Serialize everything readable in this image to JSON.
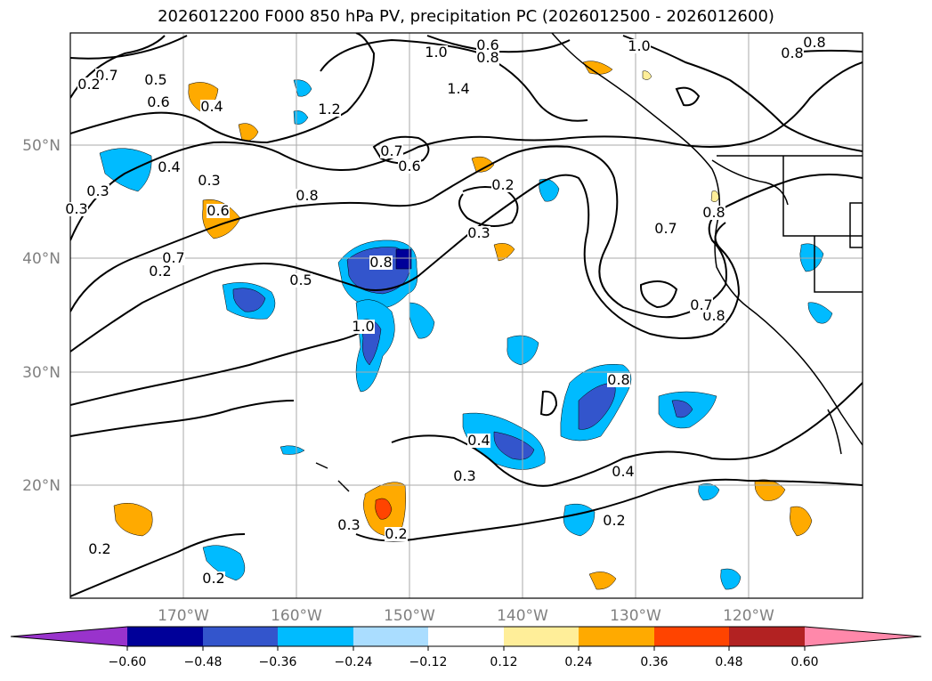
{
  "title": "2026012200 F000 850 hPa PV, precipitation PC (2026012500 - 2026012600)",
  "colors": {
    "neg": [
      "#9933cc",
      "#000099",
      "#3355cc",
      "#00bbff",
      "#aaddff"
    ],
    "zero": "#ffffff",
    "pos": [
      "#ffee99",
      "#ffaa00",
      "#ff4400",
      "#b22222",
      "#ff88aa"
    ],
    "grid": "#aaaaaa",
    "coast": "#000000",
    "contour": "#000000"
  },
  "lat_labels": [
    "50°N",
    "40°N",
    "30°N",
    "20°N"
  ],
  "lon_labels": [
    "170°W",
    "160°W",
    "150°W",
    "140°W",
    "130°W",
    "120°W"
  ],
  "colorbar": {
    "ticks": [
      "−0.60",
      "−0.48",
      "−0.36",
      "−0.24",
      "−0.12",
      "0.12",
      "0.24",
      "0.36",
      "0.48",
      "0.60"
    ]
  },
  "contour_labels": [
    "0.6",
    "1.0",
    "0.8",
    "1.0",
    "0.8",
    "0.7",
    "0.8",
    "0.5",
    "0.6",
    "0.4",
    "1.2",
    "1.4",
    "0.7",
    "0.6",
    "0.8",
    "0.3",
    "0.3",
    "0.4",
    "0.3",
    "0.2",
    "0.6",
    "0.7",
    "0.8",
    "0.7",
    "0.8",
    "0.5",
    "0.3",
    "0.8",
    "0.7",
    "1.0",
    "0.8",
    "0.4",
    "0.4",
    "0.3",
    "0.2",
    "0.3",
    "0.2",
    "0.2",
    "0.2",
    "0.2",
    "0.2"
  ]
}
